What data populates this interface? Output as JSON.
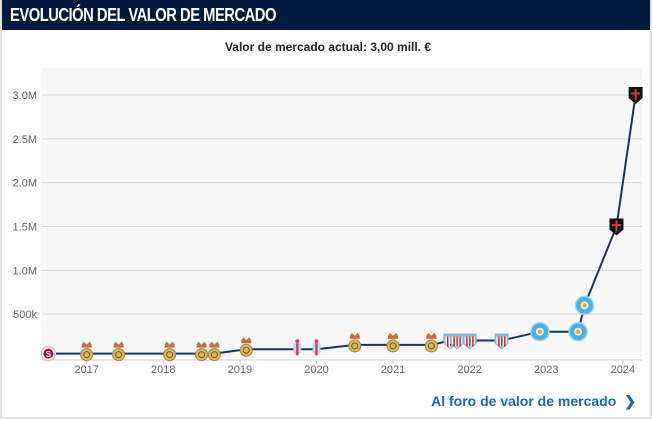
{
  "header": {
    "title": "EVOLUCIÓN DEL VALOR DE MERCADO"
  },
  "subtitle": "Valor de mercado actual: 3,00 mill. €",
  "link": {
    "label": "Al foro de valor de mercado",
    "icon": "chevron-right-icon"
  },
  "colors": {
    "header_bg": "#00193f",
    "line": "#1e3557",
    "link": "#1a6a9c",
    "plot_bg": "#f7f7f7"
  },
  "chart_data": {
    "type": "line",
    "title": "",
    "xlabel": "",
    "ylabel": "",
    "ylim": [
      0,
      3000000
    ],
    "xlim": [
      "2016-06",
      "2024-04"
    ],
    "grid": true,
    "y_ticks": [
      {
        "value": 500000,
        "label": "500k"
      },
      {
        "value": 1000000,
        "label": "1.0M"
      },
      {
        "value": 1500000,
        "label": "1.5M"
      },
      {
        "value": 2000000,
        "label": "2.0M"
      },
      {
        "value": 2500000,
        "label": "2.5M"
      },
      {
        "value": 3000000,
        "label": "3.0M"
      }
    ],
    "x_ticks": [
      "2017",
      "2018",
      "2019",
      "2020",
      "2021",
      "2022",
      "2023",
      "2024"
    ],
    "points": [
      {
        "date": "2016-07",
        "value": 50000,
        "marker": "club-crest-maroon-s"
      },
      {
        "date": "2017-01",
        "value": 50000,
        "marker": "club-crest-gold-crown"
      },
      {
        "date": "2017-06",
        "value": 50000,
        "marker": "club-crest-gold-crown"
      },
      {
        "date": "2018-02",
        "value": 50000,
        "marker": "club-crest-gold-crown"
      },
      {
        "date": "2018-07",
        "value": 50000,
        "marker": "club-crest-gold-crown"
      },
      {
        "date": "2018-09",
        "value": 50000,
        "marker": "club-crest-gold-crown"
      },
      {
        "date": "2019-02",
        "value": 100000,
        "marker": "club-crest-gold-crown"
      },
      {
        "date": "2019-10",
        "value": 100000,
        "marker": "club-crest-sky-pink"
      },
      {
        "date": "2020-01",
        "value": 100000,
        "marker": "club-crest-sky-pink"
      },
      {
        "date": "2020-07",
        "value": 150000,
        "marker": "club-crest-gold-crown"
      },
      {
        "date": "2021-01",
        "value": 150000,
        "marker": "club-crest-gold-crown"
      },
      {
        "date": "2021-07",
        "value": 150000,
        "marker": "club-crest-gold-crown"
      },
      {
        "date": "2021-10",
        "value": 200000,
        "marker": "club-crest-red-white-stripes"
      },
      {
        "date": "2021-11",
        "value": 200000,
        "marker": "club-crest-red-white-stripes"
      },
      {
        "date": "2022-01",
        "value": 200000,
        "marker": "club-crest-red-white-stripes"
      },
      {
        "date": "2022-06",
        "value": 200000,
        "marker": "club-crest-red-white-stripes"
      },
      {
        "date": "2022-12",
        "value": 300000,
        "marker": "club-crest-light-blue-circle"
      },
      {
        "date": "2023-06",
        "value": 300000,
        "marker": "club-crest-light-blue-circle"
      },
      {
        "date": "2023-07",
        "value": 600000,
        "marker": "club-crest-light-blue-circle"
      },
      {
        "date": "2023-12",
        "value": 1500000,
        "marker": "club-crest-black-red-cross"
      },
      {
        "date": "2024-03",
        "value": 3000000,
        "marker": "club-crest-black-red-cross"
      }
    ]
  }
}
